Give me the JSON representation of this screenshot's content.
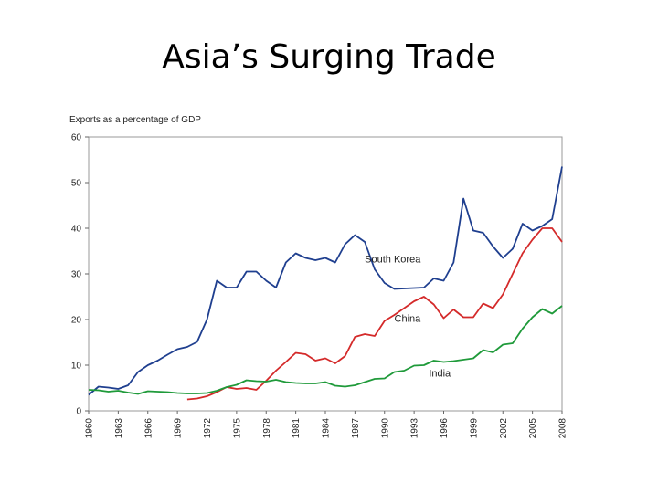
{
  "slide": {
    "title": "Asia’s Surging Trade"
  },
  "chart_data": {
    "type": "line",
    "title": "Asia’s Surging Trade",
    "ylabel": "Exports as a percentage of GDP",
    "xlabel": "",
    "xlim": [
      1960,
      2008
    ],
    "ylim": [
      0,
      60
    ],
    "yticks": [
      0,
      10,
      20,
      30,
      40,
      50,
      60
    ],
    "xticks": [
      1960,
      1963,
      1966,
      1969,
      1972,
      1975,
      1978,
      1981,
      1984,
      1987,
      1990,
      1993,
      1996,
      1999,
      2002,
      2005,
      2008
    ],
    "grid": false,
    "legend": "inline labels",
    "series": [
      {
        "name": "South Korea",
        "color": "#1f3f8f",
        "label_at": [
          1988,
          32.5
        ],
        "x": [
          1960,
          1961,
          1962,
          1963,
          1964,
          1965,
          1966,
          1967,
          1968,
          1969,
          1970,
          1971,
          1972,
          1973,
          1974,
          1975,
          1976,
          1977,
          1978,
          1979,
          1980,
          1981,
          1982,
          1983,
          1984,
          1985,
          1986,
          1987,
          1988,
          1989,
          1990,
          1991,
          1992,
          1993,
          1994,
          1995,
          1996,
          1997,
          1998,
          1999,
          2000,
          2001,
          2002,
          2003,
          2004,
          2005,
          2006,
          2007,
          2008
        ],
        "values": [
          3.5,
          5.3,
          5.1,
          4.8,
          5.6,
          8.5,
          10,
          11,
          12.3,
          13.5,
          14,
          15.1,
          20,
          28.5,
          27,
          27,
          30.5,
          30.5,
          28.5,
          27,
          32.5,
          34.5,
          33.5,
          33,
          33.5,
          32.5,
          36.5,
          38.5,
          37,
          31,
          28,
          26.7,
          26.8,
          26.9,
          27,
          29,
          28.5,
          32.5,
          46.5,
          39.5,
          39,
          36,
          33.5,
          35.5,
          41,
          39.5,
          40.5,
          42,
          53.5
        ]
      },
      {
        "name": "China",
        "color": "#d42a2a",
        "label_at": [
          1991,
          19.5
        ],
        "x": [
          1970,
          1971,
          1972,
          1973,
          1974,
          1975,
          1976,
          1977,
          1978,
          1979,
          1980,
          1981,
          1982,
          1983,
          1984,
          1985,
          1986,
          1987,
          1988,
          1989,
          1990,
          1991,
          1992,
          1993,
          1994,
          1995,
          1996,
          1997,
          1998,
          1999,
          2000,
          2001,
          2002,
          2003,
          2004,
          2005,
          2006,
          2007,
          2008
        ],
        "values": [
          2.5,
          2.7,
          3.2,
          4.1,
          5.2,
          4.8,
          5,
          4.6,
          6.6,
          8.8,
          10.7,
          12.7,
          12.4,
          11,
          11.5,
          10.4,
          12,
          16.2,
          16.8,
          16.4,
          19.7,
          21,
          22.5,
          24,
          25,
          23.3,
          20.3,
          22.2,
          20.5,
          20.5,
          23.5,
          22.5,
          25.5,
          30,
          34.5,
          37.5,
          40,
          40,
          37
        ]
      },
      {
        "name": "India",
        "color": "#1f9a3a",
        "label_at": [
          1994.5,
          7.5
        ],
        "x": [
          1960,
          1961,
          1962,
          1963,
          1964,
          1965,
          1966,
          1967,
          1968,
          1969,
          1970,
          1971,
          1972,
          1973,
          1974,
          1975,
          1976,
          1977,
          1978,
          1979,
          1980,
          1981,
          1982,
          1983,
          1984,
          1985,
          1986,
          1987,
          1988,
          1989,
          1990,
          1991,
          1992,
          1993,
          1994,
          1995,
          1996,
          1997,
          1998,
          1999,
          2000,
          2001,
          2002,
          2003,
          2004,
          2005,
          2006,
          2007,
          2008
        ],
        "values": [
          4.6,
          4.5,
          4.2,
          4.4,
          4,
          3.7,
          4.3,
          4.2,
          4.1,
          3.9,
          3.8,
          3.8,
          3.9,
          4.4,
          5.2,
          5.7,
          6.7,
          6.5,
          6.4,
          6.8,
          6.3,
          6.1,
          6,
          6,
          6.3,
          5.5,
          5.3,
          5.6,
          6.3,
          7,
          7.1,
          8.5,
          8.8,
          9.9,
          10,
          11,
          10.7,
          10.9,
          11.2,
          11.5,
          13.3,
          12.8,
          14.5,
          14.8,
          18,
          20.5,
          22.3,
          21.3,
          23
        ]
      }
    ]
  }
}
